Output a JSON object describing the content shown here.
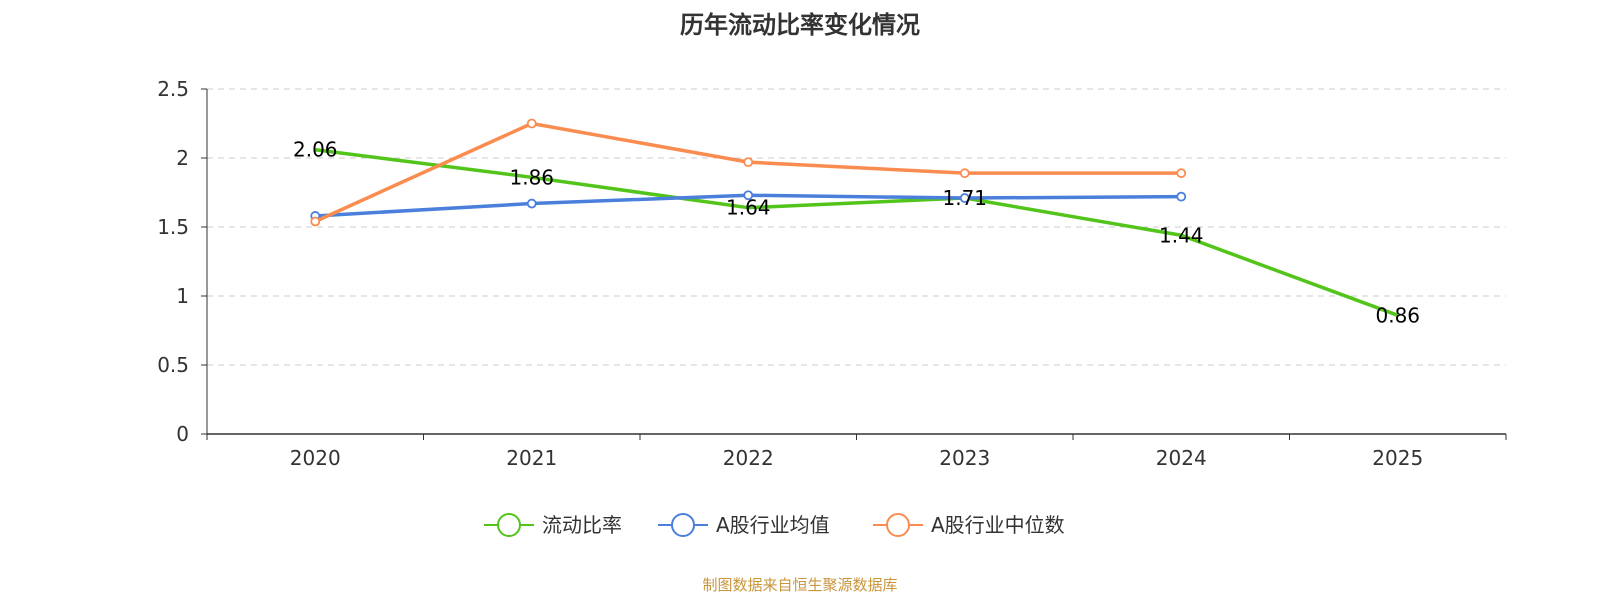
{
  "chart_data": {
    "type": "line",
    "title": "历年流动比率变化情况",
    "categories": [
      "2020",
      "2021",
      "2022",
      "2023",
      "2024",
      "2025"
    ],
    "ylim": [
      0,
      2.5
    ],
    "yticks": [
      "0",
      "0.5",
      "1",
      "1.5",
      "2",
      "2.5"
    ],
    "ytick_values": [
      0,
      0.5,
      1,
      1.5,
      2,
      2.5
    ],
    "grid": true,
    "legend_position": "bottom-center",
    "series": [
      {
        "name": "流动比率",
        "color": "#52c41a",
        "values": [
          2.06,
          1.86,
          1.64,
          1.71,
          1.44,
          0.86
        ],
        "labels": [
          "2.06",
          "1.86",
          "1.64",
          "1.71",
          "1.44",
          "0.86"
        ],
        "show_labels": true,
        "show_markers": false
      },
      {
        "name": "A股行业均值",
        "color": "#4a7fdb",
        "values": [
          1.58,
          1.67,
          1.73,
          1.71,
          1.72,
          null
        ],
        "show_labels": false,
        "show_markers": true
      },
      {
        "name": "A股行业中位数",
        "color": "#fa8c50",
        "values": [
          1.54,
          2.25,
          1.97,
          1.89,
          1.89,
          null
        ],
        "show_labels": false,
        "show_markers": true
      }
    ]
  },
  "source": {
    "text": "制图数据来自恒生聚源数据库",
    "color": "#c8963c"
  }
}
